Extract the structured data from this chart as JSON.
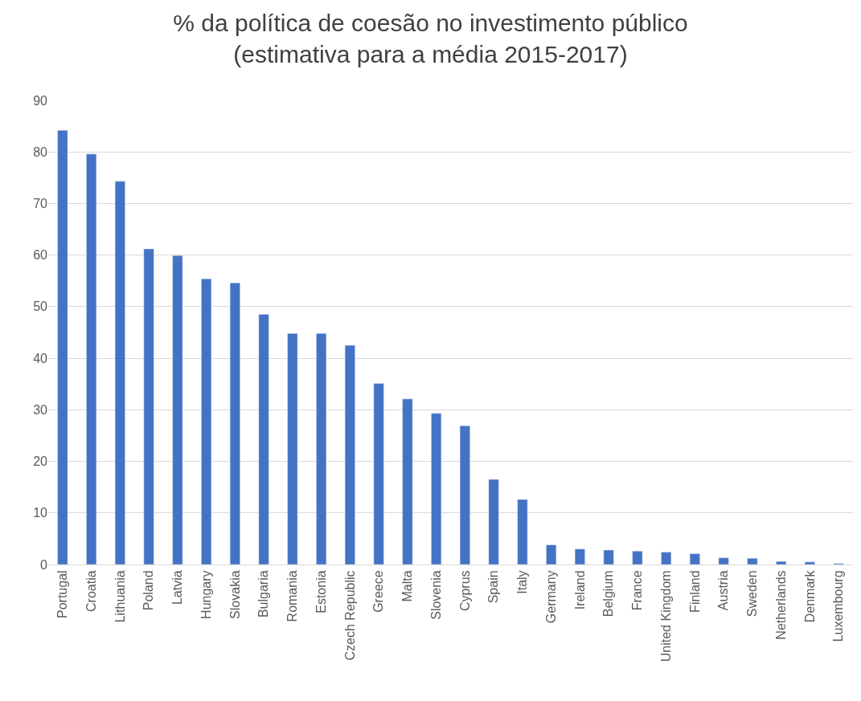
{
  "chart_data": {
    "type": "bar",
    "title": "% da política de coesão no investimento público\n(estimativa para a média 2015-2017)",
    "categories": [
      "Portugal",
      "Croatia",
      "Lithuania",
      "Poland",
      "Latvia",
      "Hungary",
      "Slovakia",
      "Bulgaria",
      "Romania",
      "Estonia",
      "Czech Republic",
      "Greece",
      "Malta",
      "Slovenia",
      "Cyprus",
      "Spain",
      "Italy",
      "Germany",
      "Ireland",
      "Belgium",
      "France",
      "United Kingdom",
      "Finland",
      "Austria",
      "Sweden",
      "Netherlands",
      "Denmark",
      "Luxembourg"
    ],
    "values": [
      84.2,
      79.6,
      74.3,
      61.2,
      59.9,
      55.4,
      54.6,
      48.5,
      44.8,
      44.8,
      42.5,
      35.1,
      32.1,
      29.3,
      26.9,
      16.5,
      12.6,
      3.8,
      3.0,
      2.8,
      2.6,
      2.4,
      2.1,
      1.3,
      1.2,
      0.6,
      0.5,
      0.2
    ],
    "color": "#4472c4",
    "ylim": [
      0,
      90
    ],
    "yticks": [
      0,
      10,
      20,
      30,
      40,
      50,
      60,
      70,
      80,
      90
    ],
    "grid": "y"
  }
}
